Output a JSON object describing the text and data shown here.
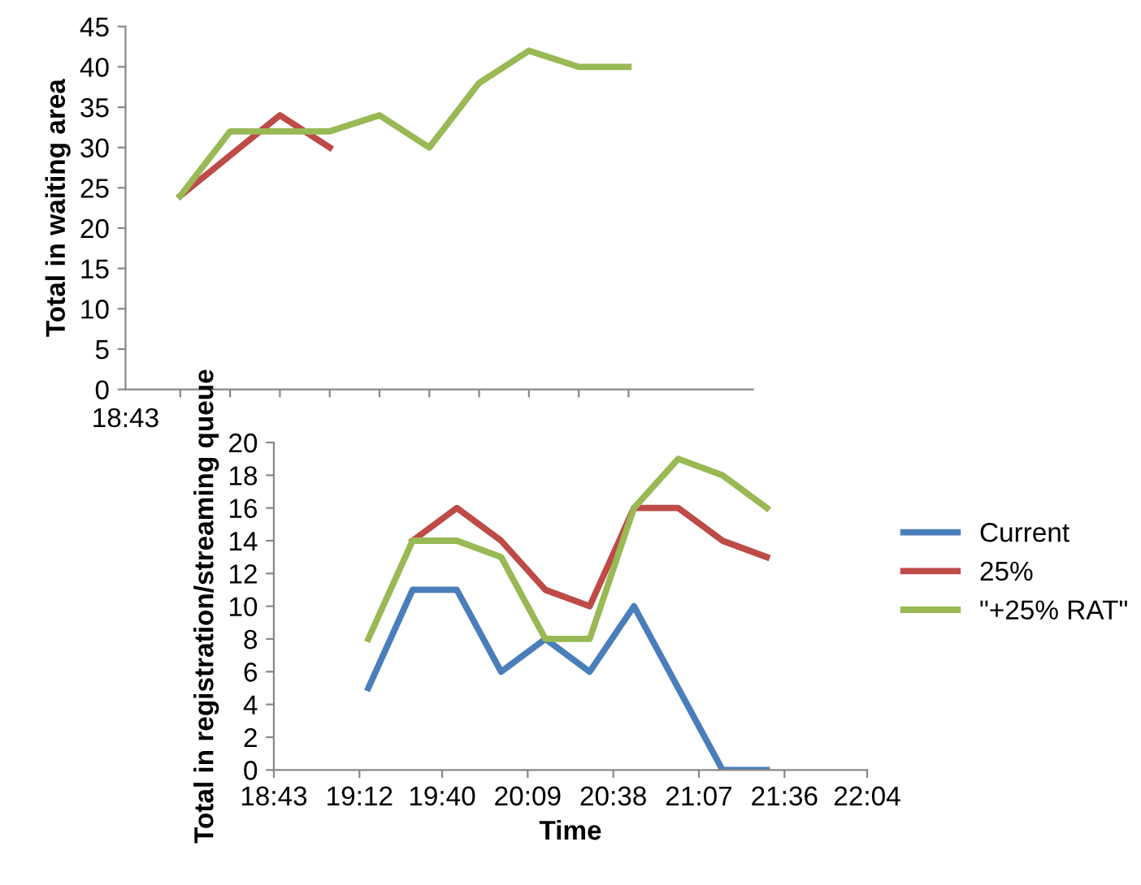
{
  "chart_data": [
    {
      "type": "line",
      "ylabel": "Total in waiting area",
      "ylim": [
        0,
        45
      ],
      "yticks": [
        0,
        5,
        10,
        15,
        20,
        25,
        30,
        35,
        40,
        45
      ],
      "categories": [
        null,
        null,
        null,
        null,
        null,
        null,
        null,
        null,
        null,
        null
      ],
      "tick_labels": "y",
      "annotations": [
        "18:43"
      ],
      "series": [
        {
          "color": "#be4b48",
          "values": [
            24,
            29,
            34,
            30,
            null,
            null,
            null,
            null,
            null,
            null
          ]
        },
        {
          "color": "#98b954",
          "values": [
            24,
            32,
            32,
            32,
            34,
            30,
            38,
            42,
            40,
            40
          ]
        }
      ],
      "grid": false,
      "legend": false,
      "marker": "none",
      "line_style": "solid"
    },
    {
      "type": "line",
      "xlabel": "Time",
      "ylabel": "Total in registration/streaming queue",
      "xlim": [
        18.7167,
        22.0667
      ],
      "ylim": [
        0,
        20
      ],
      "yticks": [
        0,
        2,
        4,
        6,
        8,
        10,
        12,
        14,
        16,
        18,
        20
      ],
      "xticks": [
        {
          "value": 18.7167,
          "label": "18:43"
        },
        {
          "value": 19.2,
          "label": "19:12"
        },
        {
          "value": 19.6667,
          "label": "19:40"
        },
        {
          "value": 20.15,
          "label": "20:09"
        },
        {
          "value": 20.6333,
          "label": "20:38"
        },
        {
          "value": 21.1167,
          "label": "21:07"
        },
        {
          "value": 21.6,
          "label": "21:36"
        },
        {
          "value": 22.0667,
          "label": "22:04"
        }
      ],
      "series": [
        {
          "name": "Current",
          "color": "#4a7ebb",
          "x": [
            19.25,
            19.5,
            19.75,
            20.0,
            20.25,
            20.5,
            20.75,
            21.25,
            21.5
          ],
          "values": [
            5,
            11,
            11,
            6,
            8,
            6,
            10,
            0,
            0
          ]
        },
        {
          "name": "25%",
          "color": "#be4b48",
          "x": [
            19.5,
            19.75,
            20.0,
            20.25,
            20.5,
            20.75,
            21.0,
            21.25,
            21.5
          ],
          "values": [
            14,
            16,
            14,
            11,
            10,
            16,
            16,
            14,
            13
          ]
        },
        {
          "name": "\"+25% RAT\"",
          "color": "#98b954",
          "x": [
            19.25,
            19.5,
            19.75,
            20.0,
            20.25,
            20.5,
            20.75,
            21.0,
            21.25,
            21.5
          ],
          "values": [
            8,
            14,
            14,
            13,
            8,
            8,
            16,
            19,
            18,
            16
          ]
        }
      ],
      "grid": false,
      "legend": "right",
      "marker": "none",
      "line_style": "solid"
    }
  ]
}
